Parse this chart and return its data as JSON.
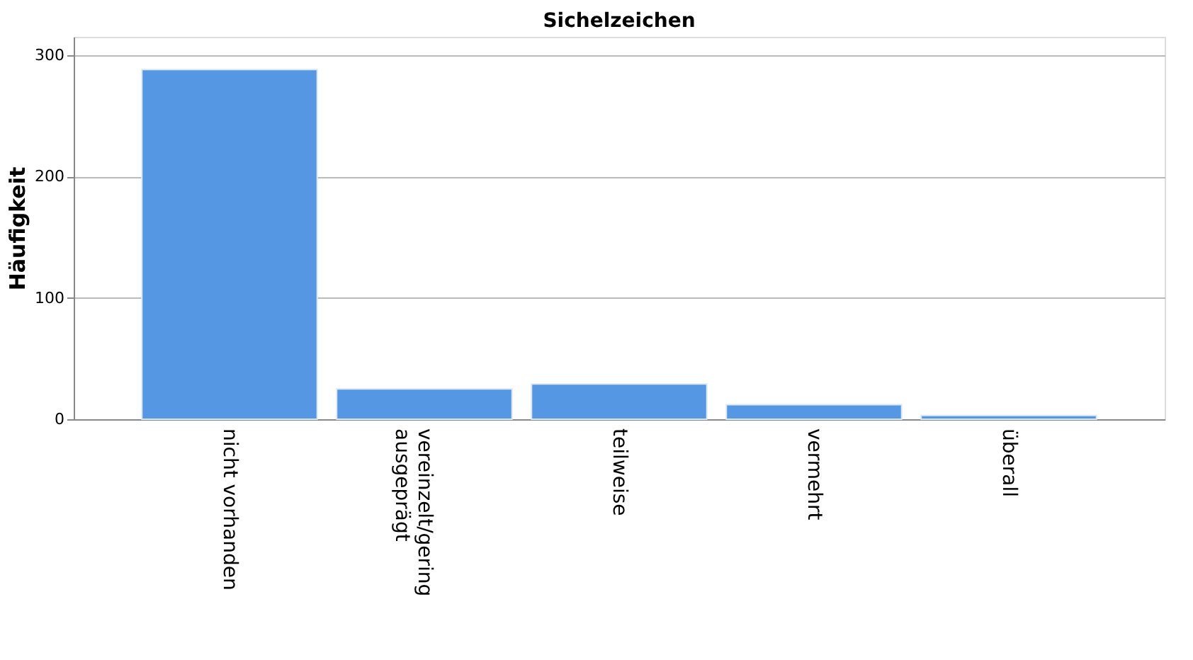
{
  "chart_data": {
    "type": "bar",
    "title": "Sichelzeichen",
    "ylabel": "Häufigkeit",
    "categories": [
      "nicht vorhanden",
      "vereinzelt/gering\nausgeprägt",
      "teilweise",
      "vermehrt",
      "überall"
    ],
    "values": [
      288,
      25,
      29,
      12,
      3
    ],
    "color": "#5597e2",
    "ylim": [
      0,
      315
    ],
    "yticks": [
      0,
      100,
      200,
      300
    ],
    "grid": "y",
    "legend": false
  }
}
